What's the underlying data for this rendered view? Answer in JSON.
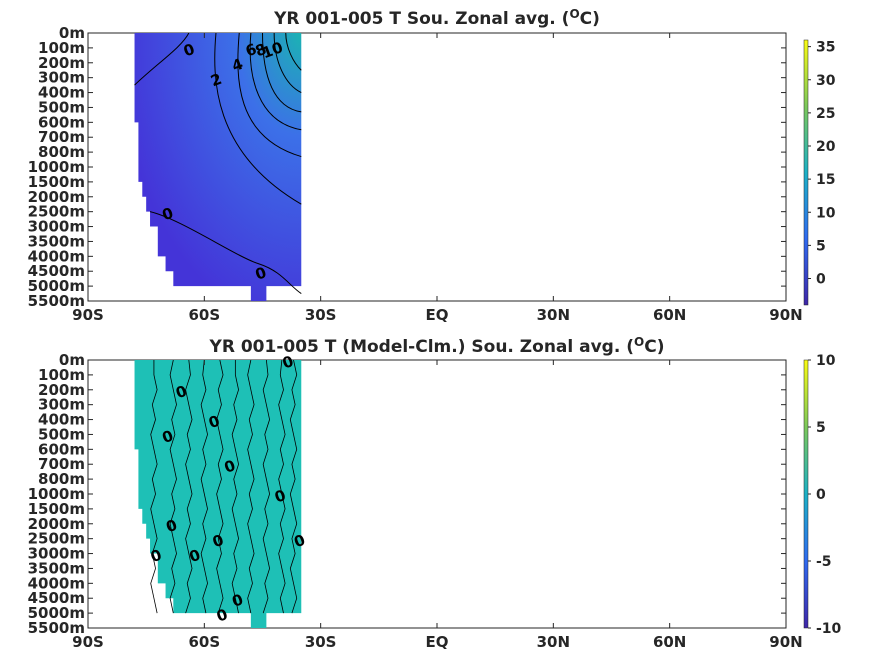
{
  "chart_data": [
    {
      "type": "heatmap",
      "title": "YR 001-005 T Sou. Zonal avg. (",
      "title_sup": "O",
      "title_suffix": "C)",
      "x_ticks": [
        "90S",
        "60S",
        "30S",
        "EQ",
        "30N",
        "60N",
        "90N"
      ],
      "x_values": [
        -90,
        -60,
        -30,
        0,
        30,
        60,
        90
      ],
      "y_ticks": [
        "0m",
        "100m",
        "200m",
        "300m",
        "400m",
        "500m",
        "600m",
        "700m",
        "800m",
        "1000m",
        "1500m",
        "2000m",
        "2500m",
        "3000m",
        "3500m",
        "4000m",
        "4500m",
        "5000m",
        "5500m"
      ],
      "data_lat_range": [
        -78,
        -35
      ],
      "colorbar": {
        "min": -4,
        "max": 36,
        "ticks": [
          "35",
          "30",
          "25",
          "20",
          "15",
          "10",
          "5",
          "0"
        ],
        "tick_values": [
          35,
          30,
          25,
          20,
          15,
          10,
          5,
          0
        ]
      },
      "contour_labels": [
        {
          "text": "0",
          "lat": -63.5,
          "depth": "100m"
        },
        {
          "text": "2",
          "lat": -56.5,
          "depth": "300m"
        },
        {
          "text": "4",
          "lat": -51,
          "depth": "200m"
        },
        {
          "text": "6",
          "lat": -47.5,
          "depth": "100m"
        },
        {
          "text": "8",
          "lat": -45,
          "depth": "100m"
        },
        {
          "text": "10",
          "lat": -42,
          "depth": "100m"
        },
        {
          "text": "0",
          "lat": -69,
          "depth": "2500m"
        },
        {
          "text": "0",
          "lat": -45,
          "depth": "4500m"
        }
      ],
      "colors": {
        "cold": "#4434d8",
        "mid": "#3c70e8",
        "warm": "#1bb3b3"
      }
    },
    {
      "type": "heatmap",
      "title": "YR 001-005 T (Model-Clm.) Sou. Zonal avg. (",
      "title_sup": "O",
      "title_suffix": "C)",
      "x_ticks": [
        "90S",
        "60S",
        "30S",
        "EQ",
        "30N",
        "60N",
        "90N"
      ],
      "x_values": [
        -90,
        -60,
        -30,
        0,
        30,
        60,
        90
      ],
      "y_ticks": [
        "0m",
        "100m",
        "200m",
        "300m",
        "400m",
        "500m",
        "600m",
        "700m",
        "800m",
        "1000m",
        "1500m",
        "2000m",
        "2500m",
        "3000m",
        "3500m",
        "4000m",
        "4500m",
        "5000m",
        "5500m"
      ],
      "data_lat_range": [
        -78,
        -35
      ],
      "colorbar": {
        "min": -10,
        "max": 10,
        "ticks": [
          "10",
          "5",
          "0",
          "-5",
          "-10"
        ],
        "tick_values": [
          10,
          5,
          0,
          -5,
          -10
        ]
      },
      "contour_labels": [
        {
          "text": "0",
          "lat": -38,
          "depth": "0m"
        },
        {
          "text": "0",
          "lat": -65.5,
          "depth": "200m"
        },
        {
          "text": "0",
          "lat": -69,
          "depth": "500m"
        },
        {
          "text": "0",
          "lat": -57,
          "depth": "400m"
        },
        {
          "text": "0",
          "lat": -53,
          "depth": "700m"
        },
        {
          "text": "0",
          "lat": -40,
          "depth": "1000m"
        },
        {
          "text": "0",
          "lat": -68,
          "depth": "2000m"
        },
        {
          "text": "0",
          "lat": -56,
          "depth": "2500m"
        },
        {
          "text": "0",
          "lat": -62,
          "depth": "3000m"
        },
        {
          "text": "0",
          "lat": -72,
          "depth": "3000m"
        },
        {
          "text": "0",
          "lat": -35,
          "depth": "2500m"
        },
        {
          "text": "0",
          "lat": -51,
          "depth": "4500m"
        },
        {
          "text": "0",
          "lat": -55,
          "depth": "5000m"
        }
      ],
      "colors": {
        "field": "#1ec0b6"
      }
    }
  ]
}
